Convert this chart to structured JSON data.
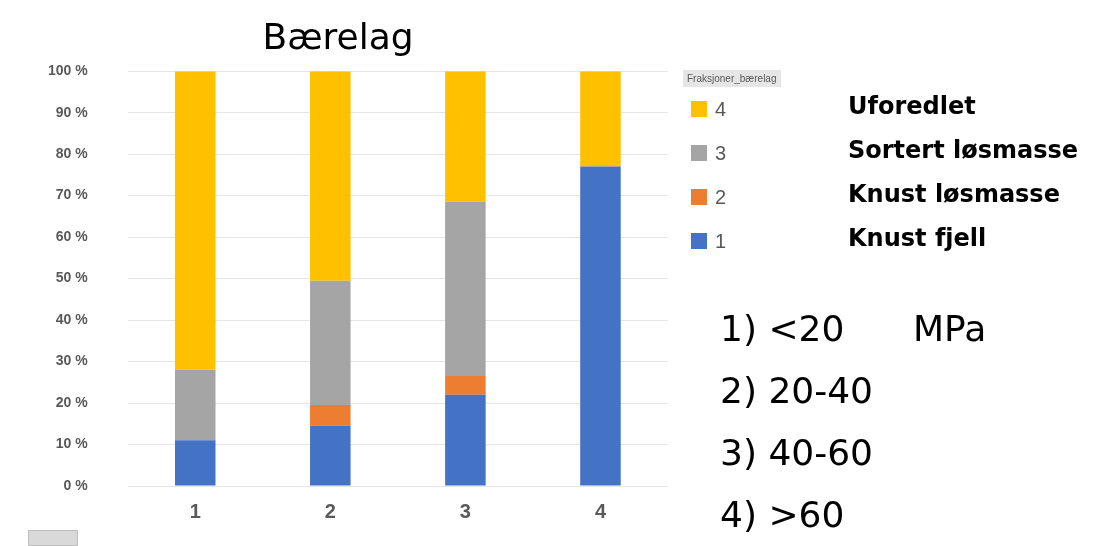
{
  "chart_data": {
    "type": "bar",
    "title": "Bærelag",
    "stacked": true,
    "categories": [
      "1",
      "2",
      "3",
      "4"
    ],
    "series": [
      {
        "name": "1",
        "color": "#4472c4",
        "values": [
          11,
          14.5,
          22,
          77
        ]
      },
      {
        "name": "2",
        "color": "#ed7d31",
        "values": [
          0,
          5,
          4.5,
          0
        ]
      },
      {
        "name": "3",
        "color": "#a5a5a5",
        "values": [
          17,
          30,
          42,
          0
        ]
      },
      {
        "name": "4",
        "color": "#ffc000",
        "values": [
          72,
          50.5,
          31.5,
          23
        ]
      }
    ],
    "ylim": [
      0,
      100
    ],
    "yticks": [
      {
        "value": 0,
        "label": "0 %"
      },
      {
        "value": 10,
        "label": "10 %"
      },
      {
        "value": 20,
        "label": "20 %"
      },
      {
        "value": 30,
        "label": "30 %"
      },
      {
        "value": 40,
        "label": "40 %"
      },
      {
        "value": 50,
        "label": "50 %"
      },
      {
        "value": 60,
        "label": "60 %"
      },
      {
        "value": 70,
        "label": "70 %"
      },
      {
        "value": 80,
        "label": "80 %"
      },
      {
        "value": 90,
        "label": "90 %"
      },
      {
        "value": 100,
        "label": "100 %"
      }
    ],
    "grid": "y",
    "legend": "right",
    "legend_title": "Fraksjoner_bærelag",
    "annotations": [
      "Uforedlet",
      "Sortert løsmasse",
      "Knust løsmasse",
      "Knust fjell",
      "1) <20      MPa",
      "2) 20-40",
      "3) 40-60",
      "4) >60"
    ]
  }
}
